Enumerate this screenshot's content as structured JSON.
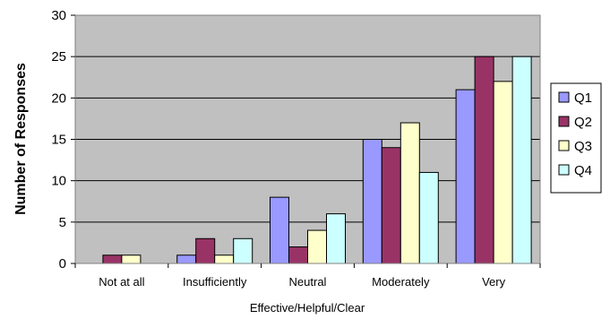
{
  "chart_data": {
    "type": "bar",
    "title": "",
    "xlabel": "Effective/Helpful/Clear",
    "ylabel": "Number of Responses",
    "ylim": [
      0,
      30
    ],
    "yticks": [
      0,
      5,
      10,
      15,
      20,
      25,
      30
    ],
    "grid": "horizontal",
    "legend_position": "right",
    "background": "#c0c0c0",
    "categories": [
      "Not at all",
      "Insufficiently",
      "Neutral",
      "Moderately",
      "Very"
    ],
    "series": [
      {
        "name": "Q1",
        "color": "#9999ff",
        "values": [
          0,
          1,
          8,
          15,
          21
        ]
      },
      {
        "name": "Q2",
        "color": "#993366",
        "values": [
          1,
          3,
          2,
          14,
          25
        ]
      },
      {
        "name": "Q3",
        "color": "#ffffcc",
        "values": [
          1,
          1,
          4,
          17,
          22
        ]
      },
      {
        "name": "Q4",
        "color": "#ccffff",
        "values": [
          0,
          3,
          6,
          11,
          25
        ]
      }
    ]
  }
}
